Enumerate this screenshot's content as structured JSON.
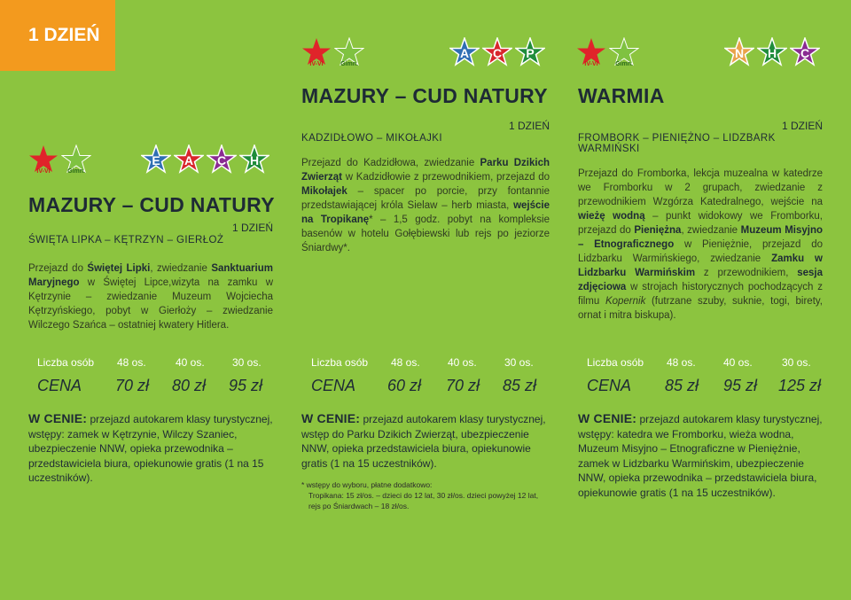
{
  "tag": "1 DZIEŃ",
  "badge_labels": {
    "e": "E",
    "a": "A",
    "c": "C",
    "h": "H",
    "p": "P",
    "n": "N"
  },
  "col1": {
    "title": "MAZURY – CUD NATURY",
    "day": "1 DZIEŃ",
    "route": "ŚWIĘTA LIPKA – KĘTRZYN – GIERŁOŻ",
    "desc_parts": [
      "Przejazd do ",
      "Świętej Lipki",
      ", zwiedzanie ",
      "Sanktuarium Maryjnego",
      " w Świętej Lipce,wizyta na zamku w Kętrzynie – zwiedzanie Muzeum Wojciecha Kętrzyńskiego, pobyt w Gierłoży – zwiedzanie Wilczego Szańca – ostatniej kwatery Hitlera."
    ],
    "price_head": [
      "Liczba osób",
      "48 os.",
      "40 os.",
      "30 os."
    ],
    "price_row": [
      "CENA",
      "70 zł",
      "80 zł",
      "95 zł"
    ],
    "cen_label": "W CENIE:",
    "cen_text": " przejazd autokarem klasy turystycznej, wstępy: zamek w Kętrzynie, Wilczy Szaniec, ubezpieczenie NNW, opieka przewodnika – przedstawiciela biura, opiekunowie gratis (1 na 15 uczestników)."
  },
  "col2": {
    "title": "MAZURY – CUD NATURY",
    "day": "1 DZIEŃ",
    "route": "KADZIDŁOWO – MIKOŁAJKI",
    "desc_parts": [
      "Przejazd do Kadzidłowa, zwiedzanie ",
      "Parku Dzikich Zwierząt",
      " w Kadzidłowie z przewodnikiem, przejazd do ",
      "Mikołajek",
      " – spacer po porcie, przy fontannie przedstawiającej króla Sielaw – herb miasta, ",
      "wejście na Tropikanę",
      "* – 1,5 godz. pobyt na kompleksie basenów w hotelu Gołębiewski lub rejs po jeziorze Śniardwy*."
    ],
    "price_head": [
      "Liczba osób",
      "48 os.",
      "40 os.",
      "30 os."
    ],
    "price_row": [
      "CENA",
      "60 zł",
      "70 zł",
      "85 zł"
    ],
    "cen_label": "W CENIE:",
    "cen_text": " przejazd autokarem klasy turystycznej, wstęp do Parku Dzikich Zwierząt, ubezpieczenie NNW, opieka przedstawiciela biura, opiekunowie gratis (1 na 15 uczestników).",
    "note1": "* wstępy do wyboru, płatne dodatkowo:",
    "note2": "Tropikana: 15 zł/os. – dzieci do 12 lat, 30 zł/os. dzieci powyżej 12 lat,",
    "note3": "rejs po Śniardwach – 18 zł/os."
  },
  "col3": {
    "title": "WARMIA",
    "day": "1 DZIEŃ",
    "route": "FROMBORK – PIENIĘŻNO – LIDZBARK WARMIŃSKI",
    "desc_parts": [
      "Przejazd do Fromborka, lekcja muzealna w katedrze we Fromborku w 2 grupach, zwiedzanie z przewodnikiem Wzgórza Katedralnego, wejście na ",
      "wieżę wodną",
      " – punkt widokowy we Fromborku, przejazd do ",
      "Pieniężna",
      ", zwiedzanie ",
      "Muzeum Misyjno – Etnograficznego",
      " w Pieniężnie, przejazd do Lidzbarku Warmińskiego, zwiedzanie ",
      "Zamku w Lidzbarku Warmińskim",
      " z przewodnikiem, ",
      "sesja zdjęciowa",
      " w strojach historycznych pochodzących z filmu ",
      "Kopernik",
      " (futrzane szuby, suknie, togi, birety, ornat i mitra biskupa)."
    ],
    "price_head": [
      "Liczba osób",
      "48 os.",
      "40 os.",
      "30 os."
    ],
    "price_row": [
      "CENA",
      "85 zł",
      "95 zł",
      "125 zł"
    ],
    "cen_label": "W CENIE:",
    "cen_text": " przejazd autokarem klasy turystycznej, wstępy: katedra we Fromborku, wieża wodna, Muzeum Misyjno – Etnograficzne w Pieniężnie, zamek w Lidzbarku Warmińskim, ubezpieczenie NNW, opieka przewodnika – przedstawiciela biura, opiekunowie gratis (1 na 15 uczestników)."
  },
  "colors": {
    "tag": "#f39a1e",
    "bg": "#8cc43f",
    "red_star": "#e0242a",
    "green_star": "#7fc241",
    "blue_star": "#2f6fb3"
  }
}
